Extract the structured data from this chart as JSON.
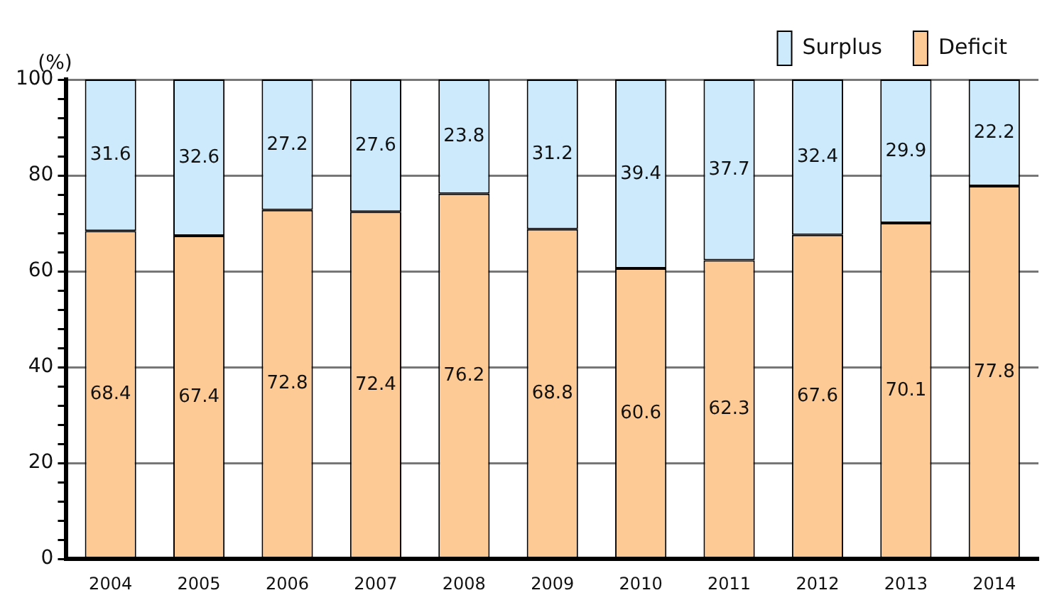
{
  "chart_data": {
    "type": "bar",
    "stacked": true,
    "ylabel": "(%)",
    "categories": [
      "2004",
      "2005",
      "2006",
      "2007",
      "2008",
      "2009",
      "2010",
      "2011",
      "2012",
      "2013",
      "2014"
    ],
    "series": [
      {
        "name": "Deficit",
        "color": "#fdca96",
        "values": [
          68.4,
          67.4,
          72.8,
          72.4,
          76.2,
          68.8,
          60.6,
          62.3,
          67.6,
          70.1,
          77.8
        ]
      },
      {
        "name": "Surplus",
        "color": "#cdeafc",
        "values": [
          31.6,
          32.6,
          27.2,
          27.6,
          23.8,
          31.2,
          39.4,
          37.7,
          32.4,
          29.9,
          22.2
        ]
      }
    ],
    "ylim": [
      0,
      100
    ],
    "yticks": [
      0,
      {
        "value": 4,
        "label": null
      },
      {
        "value": 8,
        "label": null
      },
      {
        "value": 12,
        "label": null
      },
      {
        "value": 16,
        "label": null
      },
      20,
      {
        "value": 24,
        "label": null
      },
      {
        "value": 28,
        "label": null
      },
      {
        "value": 32,
        "label": null
      },
      {
        "value": 36,
        "label": null
      },
      40,
      {
        "value": 44,
        "label": null
      },
      {
        "value": 48,
        "label": null
      },
      {
        "value": 52,
        "label": null
      },
      {
        "value": 56,
        "label": null
      },
      60,
      {
        "value": 64,
        "label": null
      },
      {
        "value": 68,
        "label": null
      },
      {
        "value": 72,
        "label": null
      },
      {
        "value": 76,
        "label": null
      },
      80,
      {
        "value": 84,
        "label": null
      },
      {
        "value": 88,
        "label": null
      },
      {
        "value": 92,
        "label": null
      },
      {
        "value": 96,
        "label": null
      },
      100
    ],
    "grid": "y",
    "legend": "top right",
    "data_labels": true
  }
}
